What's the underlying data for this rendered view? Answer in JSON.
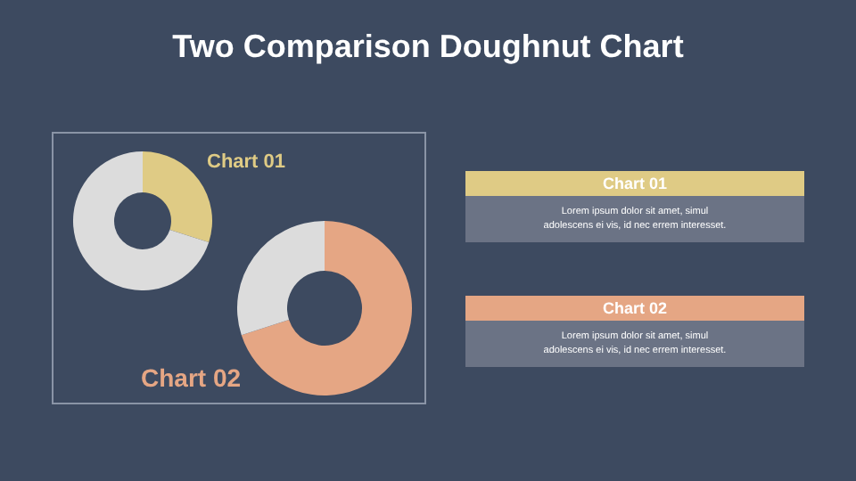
{
  "chart_data": [
    {
      "type": "other",
      "title": "Two Comparison Doughnut Chart"
    },
    {
      "type": "donut",
      "title": "Chart 01",
      "categories": [
        null,
        null
      ],
      "values": [
        30,
        70
      ],
      "colors": [
        "#dfcb85",
        "#dcdcdc"
      ]
    },
    {
      "type": "donut",
      "title": "Chart 02",
      "categories": [
        null,
        null
      ],
      "values": [
        70,
        30
      ],
      "colors": [
        "#e5a684",
        "#dcdcdc"
      ]
    },
    {
      "type": "other",
      "title": "Chart 01",
      "color": "#dfcb85",
      "annotations": [
        "Lorem ipsum dolor sit amet, simul",
        "adolescens ei vis, id nec errem  interesset."
      ]
    },
    {
      "type": "other",
      "title": "Chart 02",
      "color": "#e5a684",
      "annotations": [
        "Lorem ipsum dolor sit amet, simul",
        "adolescens ei vis, id nec errem  interesset."
      ]
    }
  ]
}
